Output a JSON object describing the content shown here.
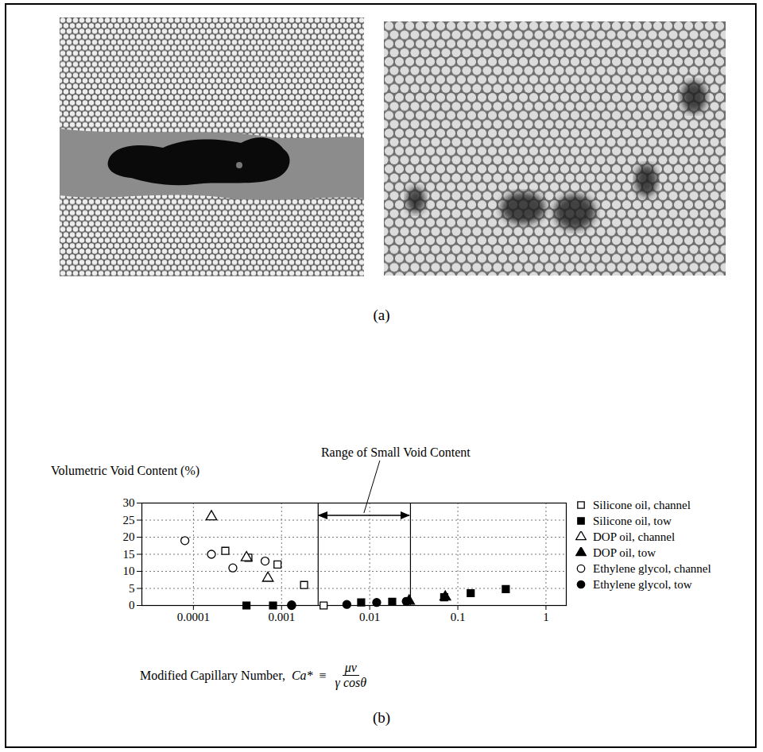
{
  "figure": {
    "panel_a": {
      "label": "(a)"
    }
  },
  "chart_data": {
    "type": "scatter",
    "panel_label": "(b)",
    "y_label": "Volumetric Void Content (%)",
    "x_label": "Modified Capillary Number,",
    "x_label_formula": {
      "symbol": "Ca*",
      "relation": "≡",
      "numerator": "μv",
      "denominator": "γ cosθ"
    },
    "log": "x",
    "grid": true,
    "legend": "right",
    "xlim": [
      2.6e-05,
      1.7
    ],
    "xticks": [
      0.0001,
      0.001,
      0.01,
      0.1,
      1
    ],
    "ylim": [
      0,
      30
    ],
    "yticks": [
      0,
      5,
      10,
      15,
      20,
      25,
      30
    ],
    "annotations": [
      {
        "text": "Range of Small Void Content",
        "x_range": [
          0.0026,
          0.029
        ]
      }
    ],
    "series": [
      {
        "name": "Silicone oil, channel",
        "marker": "square-open",
        "color": "#000000",
        "x": [
          0.00023,
          0.00042,
          0.0009,
          0.0018,
          0.003
        ],
        "values": [
          16,
          14,
          12,
          6,
          0
        ]
      },
      {
        "name": "Silicone oil, tow",
        "marker": "square",
        "color": "#000000",
        "x": [
          0.0004,
          0.0008,
          0.008,
          0.018,
          0.07,
          0.14,
          0.35
        ],
        "values": [
          0,
          0,
          0.9,
          1.1,
          2.4,
          3.6,
          4.8
        ]
      },
      {
        "name": "DOP oil, channel",
        "marker": "triangle-open",
        "color": "#000000",
        "x": [
          0.00016,
          0.0004,
          0.0007
        ],
        "values": [
          26,
          14,
          8
        ]
      },
      {
        "name": "DOP oil, tow",
        "marker": "triangle",
        "color": "#000000",
        "x": [
          0.028,
          0.072
        ],
        "values": [
          1.3,
          2.5
        ]
      },
      {
        "name": "Ethylene glycol, channel",
        "marker": "circle-open",
        "color": "#000000",
        "x": [
          8e-05,
          0.00016,
          0.00028,
          0.00065,
          0.0013
        ],
        "values": [
          19,
          15,
          11,
          13,
          0.2
        ]
      },
      {
        "name": "Ethylene glycol, tow",
        "marker": "circle",
        "color": "#000000",
        "x": [
          0.0013,
          0.0055,
          0.012,
          0.026
        ],
        "values": [
          0,
          0.3,
          0.9,
          1.2
        ]
      }
    ]
  }
}
